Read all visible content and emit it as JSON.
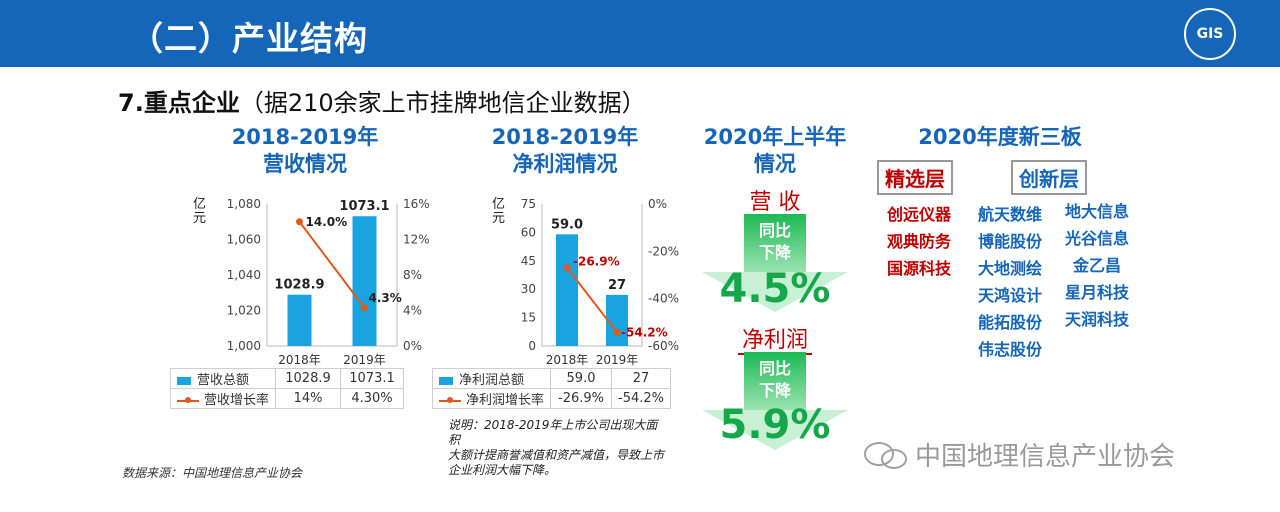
{
  "header": {
    "title": "（二）产业结构",
    "logo_text": "GIS"
  },
  "subtitle": {
    "bold": "7.重点企业",
    "rest": "（据210余家上市挂牌地信企业数据）"
  },
  "revenue_section": {
    "title_line1": "2018-2019年",
    "title_line2": "营收情况"
  },
  "profit_section": {
    "title_line1": "2018-2019年",
    "title_line2": "净利润情况"
  },
  "chart_data": [
    {
      "type": "bar",
      "categories": [
        "2018年",
        "2019年"
      ],
      "series": [
        {
          "name": "营收总额",
          "values": [
            1028.9,
            1073.1
          ],
          "labels": [
            "1028.9",
            "1073.1"
          ],
          "table_values": [
            "1028.9",
            "1073.1"
          ]
        },
        {
          "name": "营收增长率",
          "values": [
            14.0,
            4.3
          ],
          "labels": [
            "14.0%",
            "4.3%"
          ],
          "table_values": [
            "14%",
            "4.30%"
          ],
          "axis": "right"
        }
      ],
      "ylabel": "亿元",
      "ylim": [
        1000,
        1080
      ],
      "y_ticks": [
        "1,000",
        "1,020",
        "1,040",
        "1,060",
        "1,080"
      ],
      "y2lim": [
        0,
        16
      ],
      "y2_ticks": [
        "0%",
        "4%",
        "8%",
        "12%",
        "16%"
      ]
    },
    {
      "type": "bar",
      "categories": [
        "2018年",
        "2019年"
      ],
      "series": [
        {
          "name": "净利润总额",
          "values": [
            59.0,
            27
          ],
          "labels": [
            "59.0",
            "27"
          ],
          "table_values": [
            "59.0",
            "27"
          ]
        },
        {
          "name": "净利润增长率",
          "values": [
            -26.9,
            -54.2
          ],
          "labels": [
            "-26.9%",
            "-54.2%"
          ],
          "table_values": [
            "-26.9%",
            "-54.2%"
          ],
          "axis": "right"
        }
      ],
      "ylabel": "亿元",
      "ylim": [
        0,
        75
      ],
      "y_ticks": [
        "0",
        "15",
        "30",
        "45",
        "60",
        "75"
      ],
      "y2lim": [
        -60,
        0
      ],
      "y2_ticks": [
        "-60%",
        "-40%",
        "-20%",
        "0%"
      ]
    }
  ],
  "note": {
    "line1": "说明：2018-2019年上市公司出现大面积",
    "line2": "大额计提商誉减值和资产减值，导致上市",
    "line3": "企业利润大幅下降。"
  },
  "source": "数据来源：中国地理信息产业协会",
  "h2020": {
    "title_line1": "2020年上半年",
    "title_line2": "情况",
    "revenue_label": "营 收",
    "revenue_arrow_line1": "同比",
    "revenue_arrow_line2": "下降",
    "revenue_pct": "4.5%",
    "profit_label": "净利润",
    "profit_arrow_line1": "同比",
    "profit_arrow_line2": "下降",
    "profit_pct": "5.9%"
  },
  "neeq": {
    "title": "2020年度新三板",
    "select_label": "精选层",
    "innov_label": "创新层",
    "select_companies": [
      "创远仪器",
      "观典防务",
      "国源科技"
    ],
    "innov_col1": [
      "航天数维",
      "博能股份",
      "大地测绘",
      "天鸿设计",
      "能拓股份",
      "伟志股份"
    ],
    "innov_col2": [
      "地大信息",
      "光谷信息",
      "金乙昌",
      "星月科技",
      "天润科技"
    ]
  },
  "watermark": "中国地理信息产业协会",
  "colors": {
    "header": "#1565b8",
    "bar": "#19a3e0",
    "line": "#e05a1c",
    "green": "#14a84a",
    "red": "#c00000"
  }
}
